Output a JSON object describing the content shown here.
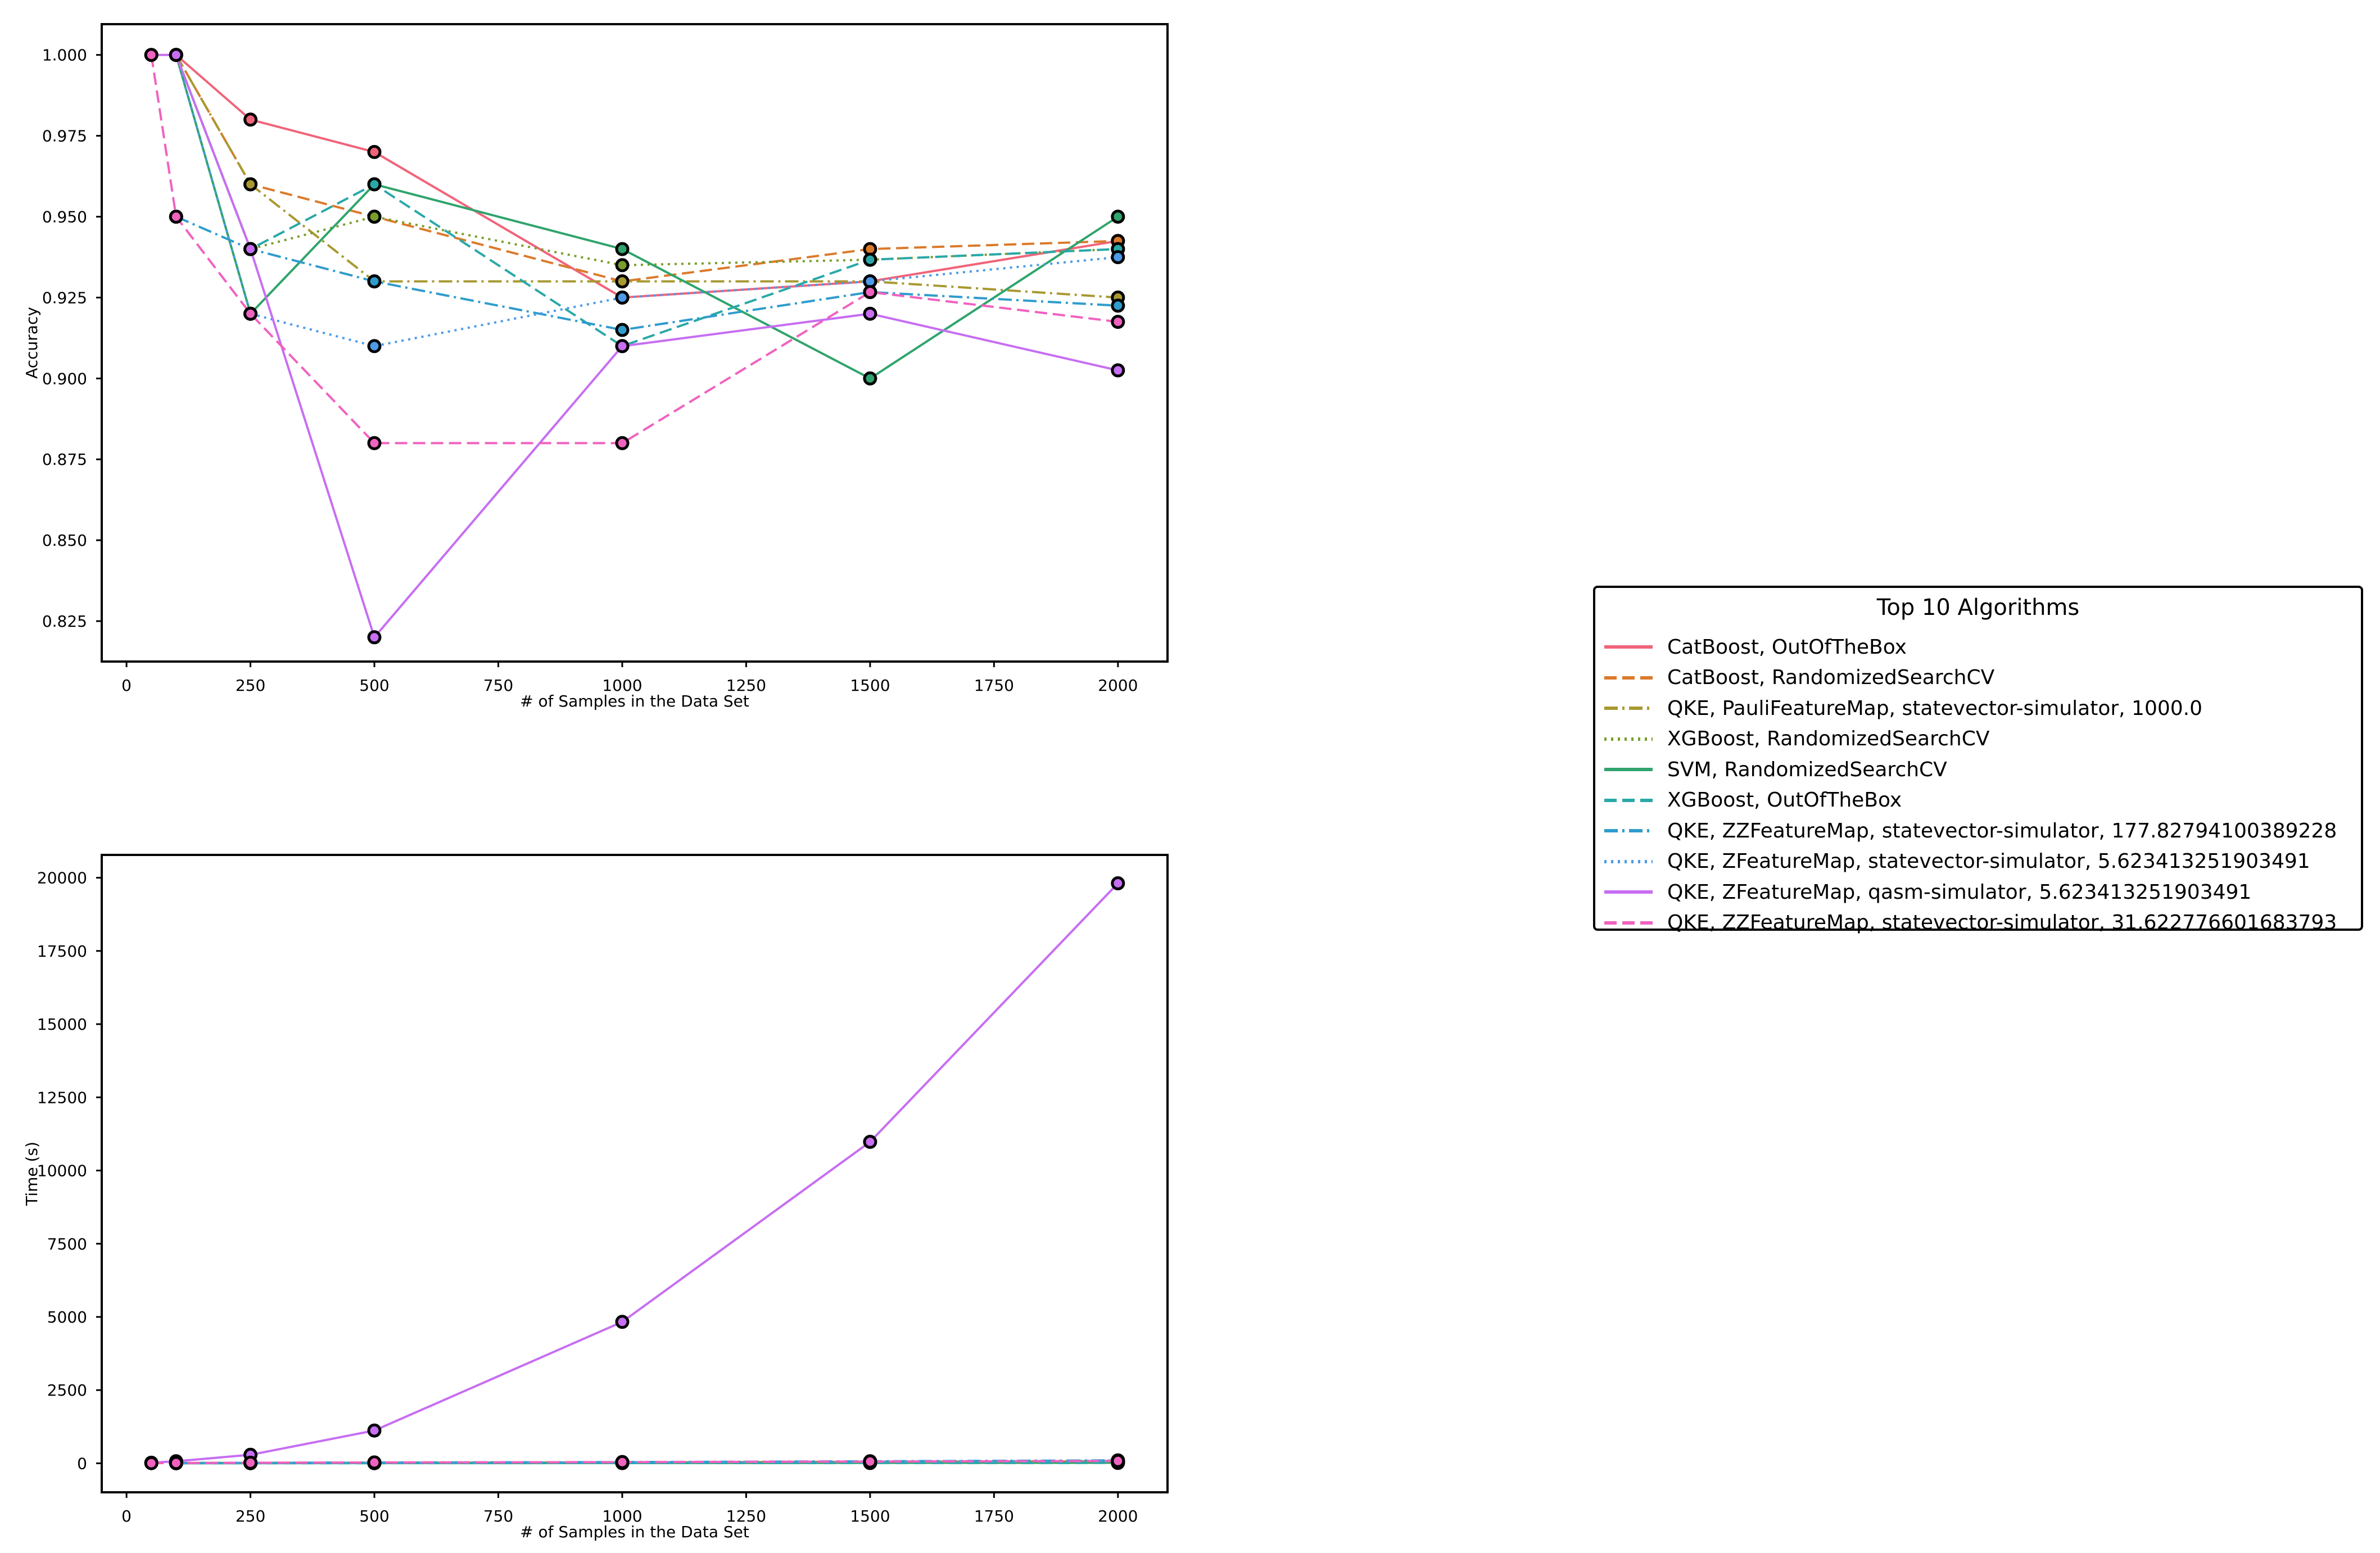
{
  "chart_data": [
    {
      "type": "line",
      "title": "",
      "xlabel": "# of Samples in the Data Set",
      "ylabel": "Accuracy",
      "xlim": [
        -50,
        2100
      ],
      "ylim": [
        0.8125,
        1.0095
      ],
      "xticks": [
        0,
        250,
        500,
        750,
        1000,
        1250,
        1500,
        1750,
        2000
      ],
      "xtick_labels": [
        "0",
        "250",
        "500",
        "750",
        "1000",
        "1250",
        "1500",
        "1750",
        "2000"
      ],
      "yticks": [
        0.825,
        0.85,
        0.875,
        0.9,
        0.925,
        0.95,
        0.975,
        1.0
      ],
      "ytick_labels": [
        "0.825",
        "0.850",
        "0.875",
        "0.900",
        "0.925",
        "0.950",
        "0.975",
        "1.000"
      ],
      "grid": false,
      "series": [
        {
          "name": "CatBoost, OutOfTheBox",
          "points": [
            [
              100,
              1.0
            ],
            [
              250,
              0.98
            ],
            [
              500,
              0.97
            ],
            [
              1000,
              0.925
            ],
            [
              1500,
              0.93
            ],
            [
              2000,
              0.9425
            ]
          ]
        },
        {
          "name": "CatBoost, RandomizedSearchCV",
          "points": [
            [
              100,
              1.0
            ],
            [
              250,
              0.96
            ],
            [
              500,
              0.95
            ],
            [
              1000,
              0.93
            ],
            [
              1500,
              0.94
            ],
            [
              2000,
              0.9425
            ]
          ]
        },
        {
          "name": "QKE, PauliFeatureMap, statevector-simulator, 1000.0",
          "points": [
            [
              100,
              1.0
            ],
            [
              250,
              0.96
            ],
            [
              500,
              0.93
            ],
            [
              1000,
              0.93
            ],
            [
              1500,
              0.93
            ],
            [
              2000,
              0.925
            ]
          ]
        },
        {
          "name": "XGBoost, RandomizedSearchCV",
          "points": [
            [
              100,
              1.0
            ],
            [
              250,
              0.94
            ],
            [
              500,
              0.95
            ],
            [
              1000,
              0.935
            ],
            [
              1500,
              0.9367
            ],
            [
              2000,
              0.94
            ]
          ]
        },
        {
          "name": "SVM, RandomizedSearchCV",
          "points": [
            [
              100,
              1.0
            ],
            [
              250,
              0.92
            ],
            [
              500,
              0.96
            ],
            [
              1000,
              0.94
            ],
            [
              1500,
              0.9
            ],
            [
              2000,
              0.95
            ]
          ]
        },
        {
          "name": "XGBoost, OutOfTheBox",
          "points": [
            [
              100,
              1.0
            ],
            [
              250,
              0.94
            ],
            [
              500,
              0.96
            ],
            [
              1000,
              0.91
            ],
            [
              1500,
              0.9367
            ],
            [
              2000,
              0.94
            ]
          ]
        },
        {
          "name": "QKE, ZZFeatureMap, statevector-simulator, 177.82794100389228",
          "points": [
            [
              100,
              0.95
            ],
            [
              250,
              0.94
            ],
            [
              500,
              0.93
            ],
            [
              1000,
              0.915
            ],
            [
              1500,
              0.9267
            ],
            [
              2000,
              0.9225
            ]
          ]
        },
        {
          "name": "QKE, ZFeatureMap, statevector-simulator, 5.623413251903491",
          "points": [
            [
              100,
              1.0
            ],
            [
              250,
              0.92
            ],
            [
              500,
              0.91
            ],
            [
              1000,
              0.925
            ],
            [
              1500,
              0.93
            ],
            [
              2000,
              0.9375
            ]
          ]
        },
        {
          "name": "QKE, ZFeatureMap, qasm-simulator, 5.623413251903491",
          "points": [
            [
              50,
              1.0
            ],
            [
              100,
              1.0
            ],
            [
              250,
              0.94
            ],
            [
              500,
              0.82
            ],
            [
              1000,
              0.91
            ],
            [
              1500,
              0.92
            ],
            [
              2000,
              0.9025
            ]
          ]
        },
        {
          "name": "QKE, ZZFeatureMap, statevector-simulator, 31.622776601683793",
          "points": [
            [
              50,
              1.0
            ],
            [
              100,
              0.95
            ],
            [
              250,
              0.92
            ],
            [
              500,
              0.88
            ],
            [
              1000,
              0.88
            ],
            [
              1500,
              0.9267
            ],
            [
              2000,
              0.9175
            ]
          ]
        }
      ]
    },
    {
      "type": "line",
      "title": "",
      "xlabel": "# of Samples in the Data Set",
      "ylabel": "Time (s)",
      "xlim": [
        -50,
        2100
      ],
      "ylim": [
        -990,
        20780
      ],
      "xticks": [
        0,
        250,
        500,
        750,
        1000,
        1250,
        1500,
        1750,
        2000
      ],
      "xtick_labels": [
        "0",
        "250",
        "500",
        "750",
        "1000",
        "1250",
        "1500",
        "1750",
        "2000"
      ],
      "yticks": [
        0,
        2500,
        5000,
        7500,
        10000,
        12500,
        15000,
        17500,
        20000
      ],
      "ytick_labels": [
        "0",
        "2500",
        "5000",
        "7500",
        "10000",
        "12500",
        "15000",
        "17500",
        "20000"
      ],
      "grid": false,
      "series": [
        {
          "name": "CatBoost, OutOfTheBox",
          "points": [
            [
              100,
              5
            ],
            [
              250,
              8
            ],
            [
              500,
              12
            ],
            [
              1000,
              20
            ],
            [
              1500,
              30
            ],
            [
              2000,
              40
            ]
          ]
        },
        {
          "name": "CatBoost, RandomizedSearchCV",
          "points": [
            [
              100,
              10
            ],
            [
              250,
              15
            ],
            [
              500,
              20
            ],
            [
              1000,
              30
            ],
            [
              1500,
              50
            ],
            [
              2000,
              70
            ]
          ]
        },
        {
          "name": "QKE, PauliFeatureMap, statevector-simulator, 1000.0",
          "points": [
            [
              100,
              10
            ],
            [
              250,
              15
            ],
            [
              500,
              25
            ],
            [
              1000,
              40
            ],
            [
              1500,
              60
            ],
            [
              2000,
              90
            ]
          ]
        },
        {
          "name": "XGBoost, RandomizedSearchCV",
          "points": [
            [
              100,
              10
            ],
            [
              250,
              12
            ],
            [
              500,
              15
            ],
            [
              1000,
              25
            ],
            [
              1500,
              35
            ],
            [
              2000,
              50
            ]
          ]
        },
        {
          "name": "SVM, RandomizedSearchCV",
          "points": [
            [
              100,
              5
            ],
            [
              250,
              5
            ],
            [
              500,
              8
            ],
            [
              1000,
              10
            ],
            [
              1500,
              15
            ],
            [
              2000,
              20
            ]
          ]
        },
        {
          "name": "XGBoost, OutOfTheBox",
          "points": [
            [
              100,
              3
            ],
            [
              250,
              4
            ],
            [
              500,
              5
            ],
            [
              1000,
              8
            ],
            [
              1500,
              10
            ],
            [
              2000,
              12
            ]
          ]
        },
        {
          "name": "QKE, ZZFeatureMap, statevector-simulator, 177.82794100389228",
          "points": [
            [
              100,
              10
            ],
            [
              250,
              15
            ],
            [
              500,
              25
            ],
            [
              1000,
              40
            ],
            [
              1500,
              70
            ],
            [
              2000,
              100
            ]
          ]
        },
        {
          "name": "QKE, ZFeatureMap, statevector-simulator, 5.623413251903491",
          "points": [
            [
              100,
              8
            ],
            [
              250,
              12
            ],
            [
              500,
              20
            ],
            [
              1000,
              35
            ],
            [
              1500,
              60
            ],
            [
              2000,
              90
            ]
          ]
        },
        {
          "name": "QKE, ZFeatureMap, qasm-simulator, 5.623413251903491",
          "points": [
            [
              50,
              20
            ],
            [
              100,
              70
            ],
            [
              250,
              290
            ],
            [
              500,
              1120
            ],
            [
              1000,
              4830
            ],
            [
              1500,
              10980
            ],
            [
              2000,
              19810
            ]
          ]
        },
        {
          "name": "QKE, ZZFeatureMap, statevector-simulator, 31.622776601683793",
          "points": [
            [
              50,
              5
            ],
            [
              100,
              10
            ],
            [
              250,
              20
            ],
            [
              500,
              30
            ],
            [
              1000,
              40
            ],
            [
              1500,
              60
            ],
            [
              2000,
              80
            ]
          ]
        }
      ]
    }
  ],
  "legend": {
    "title": "Top 10 Algorithms",
    "placement": "right",
    "items": [
      {
        "label": "CatBoost, OutOfTheBox",
        "color": "#f0647a",
        "dash": "solid"
      },
      {
        "label": "CatBoost, RandomizedSearchCV",
        "color": "#db7a2b",
        "dash": "dashed"
      },
      {
        "label": "QKE, PauliFeatureMap, statevector-simulator, 1000.0",
        "color": "#a89930",
        "dash": "dashdot"
      },
      {
        "label": "XGBoost, RandomizedSearchCV",
        "color": "#7a9e2b",
        "dash": "dotted"
      },
      {
        "label": "SVM, RandomizedSearchCV",
        "color": "#2fa46c",
        "dash": "solid"
      },
      {
        "label": "XGBoost, OutOfTheBox",
        "color": "#2aa8a8",
        "dash": "dashed"
      },
      {
        "label": "QKE, ZZFeatureMap, statevector-simulator, 177.82794100389228",
        "color": "#2e9ccc",
        "dash": "dashdot"
      },
      {
        "label": "QKE, ZFeatureMap, statevector-simulator, 5.623413251903491",
        "color": "#4d9be8",
        "dash": "dotted"
      },
      {
        "label": "QKE, ZFeatureMap, qasm-simulator, 5.623413251903491",
        "color": "#c76ef2",
        "dash": "solid"
      },
      {
        "label": "QKE, ZZFeatureMap, statevector-simulator, 31.622776601683793",
        "color": "#f062c0",
        "dash": "dashed"
      }
    ]
  }
}
